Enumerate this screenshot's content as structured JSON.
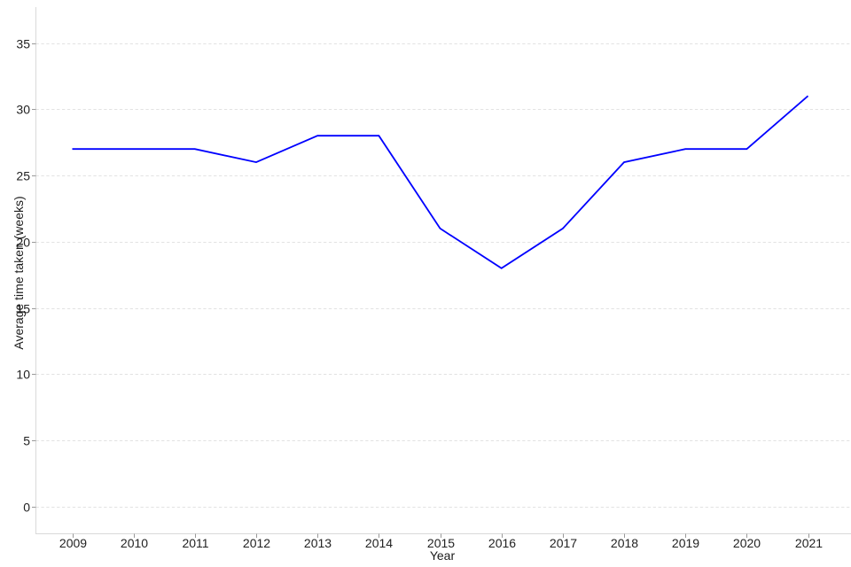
{
  "chart_data": {
    "type": "line",
    "title": "",
    "xlabel": "Year",
    "ylabel": "Average time taken (weeks)",
    "x": [
      2009,
      2010,
      2011,
      2012,
      2013,
      2014,
      2015,
      2016,
      2017,
      2018,
      2019,
      2020,
      2021
    ],
    "values": [
      27,
      27,
      27,
      26,
      28,
      28,
      21,
      18,
      21,
      26,
      27,
      27,
      31
    ],
    "yticks": [
      0,
      5,
      10,
      15,
      20,
      25,
      30,
      35
    ],
    "ylim": [
      -2,
      37.7
    ],
    "grid": "horizontal-dashed",
    "legend": "none",
    "colors": {
      "line": "#0000ff",
      "gridline": "#e2e2e2",
      "axis_line": "#d9d9d9",
      "tick_mark": "#999999",
      "text": "#222222",
      "background": "#ffffff"
    }
  }
}
